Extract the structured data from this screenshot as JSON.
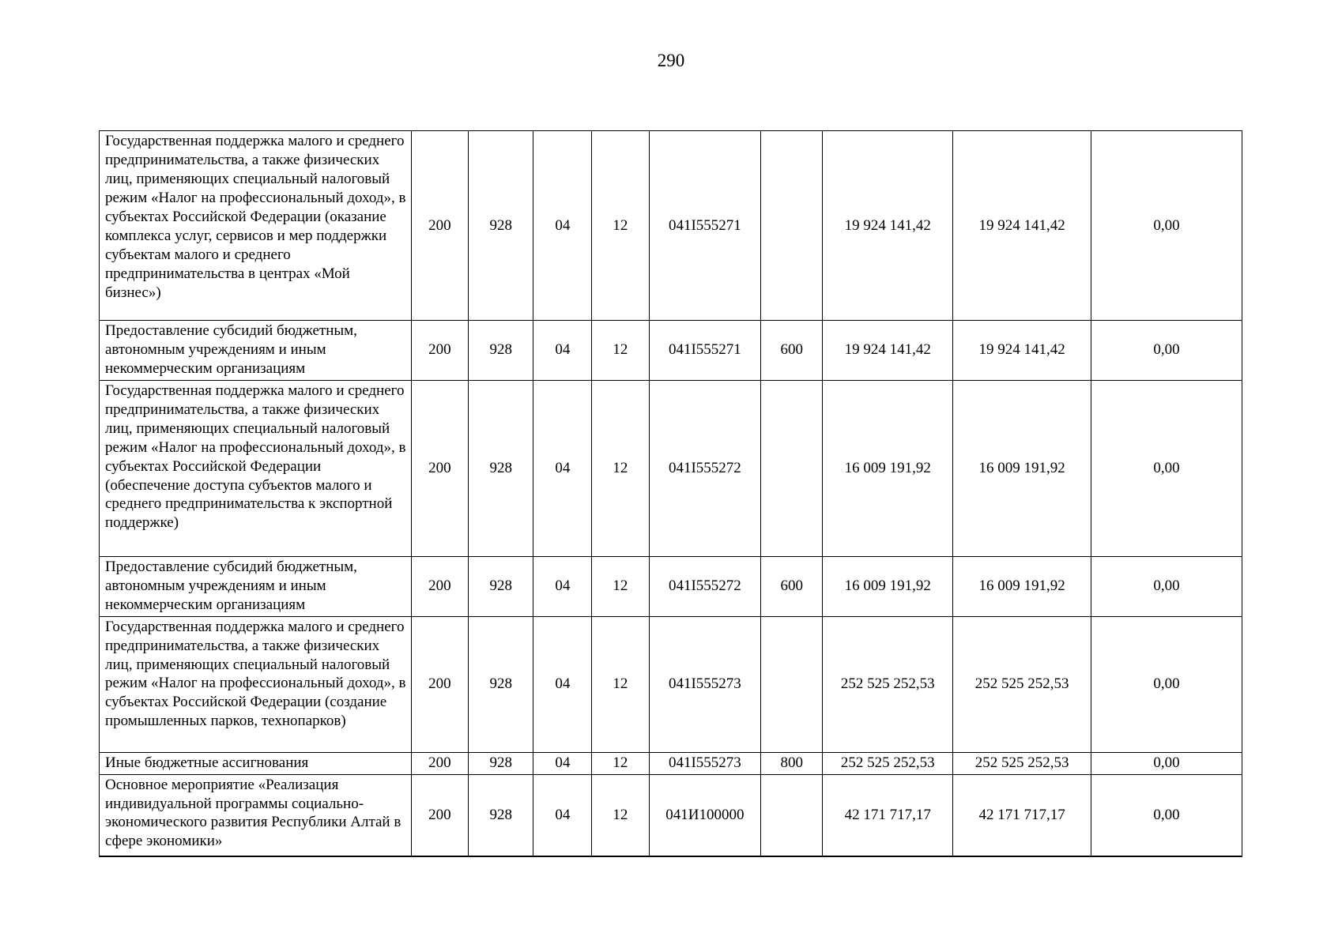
{
  "page": {
    "number": "290"
  },
  "table": {
    "rows": [
      {
        "description": "Государственная поддержка малого и среднего предпринимательства, а также физических лиц, применяющих специальный налоговый режим «Налог на профессиональный доход», в субъектах Российской Федерации (оказание комплекса услуг, сервисов и мер поддержки субъектам малого и среднего предпринимательства в центрах «Мой бизнес»)",
        "cells": [
          "200",
          "928",
          "04",
          "12",
          "041I555271",
          "",
          "19 924 141,42",
          "19 924 141,42",
          "0,00"
        ]
      },
      {
        "description": "Предоставление субсидий бюджетным, автономным учреждениям и иным некоммерческим организациям",
        "cells": [
          "200",
          "928",
          "04",
          "12",
          "041I555271",
          "600",
          "19 924 141,42",
          "19 924 141,42",
          "0,00"
        ]
      },
      {
        "description": "Государственная поддержка малого и среднего предпринимательства, а также физических лиц, применяющих специальный налоговый режим «Налог на профессиональный доход», в субъектах Российской Федерации (обеспечение доступа субъектов малого и среднего предпринимательства к экспортной поддержке)",
        "cells": [
          "200",
          "928",
          "04",
          "12",
          "041I555272",
          "",
          "16 009 191,92",
          "16 009 191,92",
          "0,00"
        ]
      },
      {
        "description": "Предоставление субсидий бюджетным, автономным учреждениям и иным некоммерческим организациям",
        "cells": [
          "200",
          "928",
          "04",
          "12",
          "041I555272",
          "600",
          "16 009 191,92",
          "16 009 191,92",
          "0,00"
        ]
      },
      {
        "description": "Государственная поддержка малого и среднего предпринимательства, а также физических лиц, применяющих специальный налоговый режим «Налог на профессиональный доход», в субъектах Российской Федерации (создание промышленных парков, технопарков)",
        "cells": [
          "200",
          "928",
          "04",
          "12",
          "041I555273",
          "",
          "252 525 252,53",
          "252 525 252,53",
          "0,00"
        ]
      },
      {
        "description": "Иные бюджетные ассигнования",
        "cells": [
          "200",
          "928",
          "04",
          "12",
          "041I555273",
          "800",
          "252 525 252,53",
          "252 525 252,53",
          "0,00"
        ]
      },
      {
        "description": "Основное мероприятие «Реализация индивидуальной программы социально-экономического развития Республики Алтай в сфере экономики»",
        "cells": [
          "200",
          "928",
          "04",
          "12",
          "041И100000",
          "",
          "42 171 717,17",
          "42 171 717,17",
          "0,00"
        ]
      }
    ]
  }
}
